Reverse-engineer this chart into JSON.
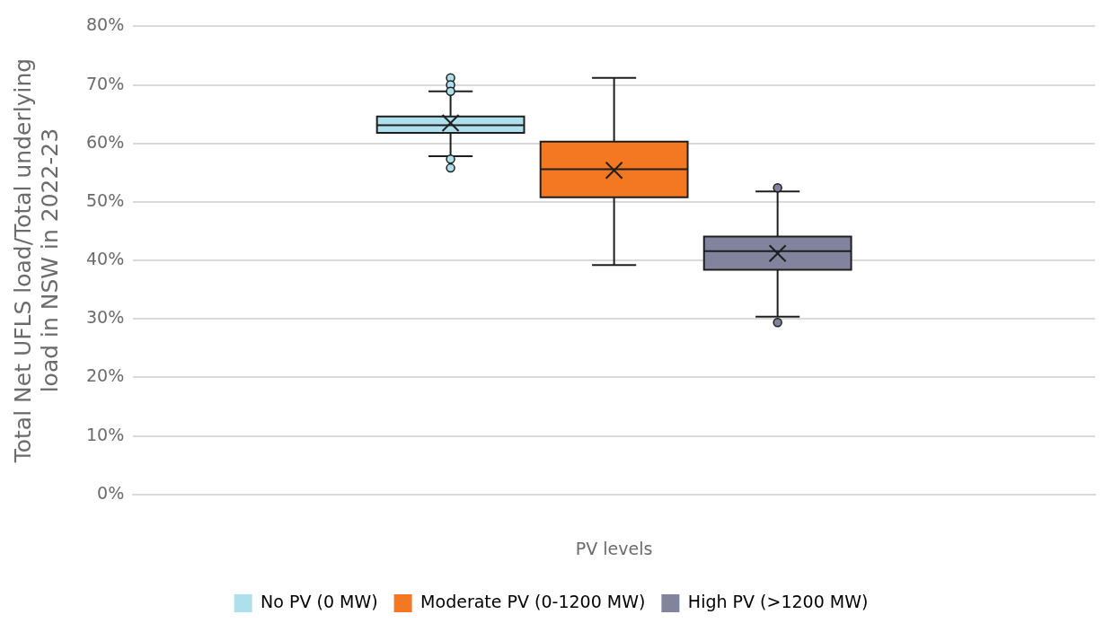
{
  "chart_data": {
    "type": "box",
    "ylabel": "Total Net UFLS load/Total underlying load in NSW in 2022-23",
    "xlabel": "PV levels",
    "categories": [
      null
    ],
    "series": [
      {
        "name": "No PV (0 MW)",
        "color": "#aedfec",
        "boxes": [
          {
            "low": 57.8,
            "q1": 61.8,
            "median": 63.1,
            "q3": 64.6,
            "high": 68.9,
            "mean": 63.5,
            "outliers": [
              71.2,
              70.0,
              68.9,
              57.3,
              55.8
            ]
          }
        ]
      },
      {
        "name": "Moderate PV (0-1200 MW)",
        "color": "#f47721",
        "boxes": [
          {
            "low": 39.2,
            "q1": 50.8,
            "median": 55.6,
            "q3": 60.3,
            "high": 71.2,
            "mean": 55.4
          }
        ]
      },
      {
        "name": "High PV (>1200 MW)",
        "color": "#82849e",
        "boxes": [
          {
            "low": 30.4,
            "q1": 38.4,
            "median": 41.6,
            "q3": 44.1,
            "high": 51.8,
            "mean": 41.2,
            "outliers": [
              52.4,
              29.4
            ]
          }
        ]
      }
    ],
    "ylim": [
      0,
      80
    ],
    "yticks": [
      {
        "value": 0,
        "label": "0%"
      },
      {
        "value": 10,
        "label": "10%"
      },
      {
        "value": 20,
        "label": "20%"
      },
      {
        "value": 30,
        "label": "30%"
      },
      {
        "value": 40,
        "label": "40%"
      },
      {
        "value": 50,
        "label": "50%"
      },
      {
        "value": 60,
        "label": "60%"
      },
      {
        "value": 70,
        "label": "70%"
      },
      {
        "value": 80,
        "label": "80%"
      }
    ],
    "grid": "y",
    "legend": "bottom",
    "marker": "circle"
  }
}
